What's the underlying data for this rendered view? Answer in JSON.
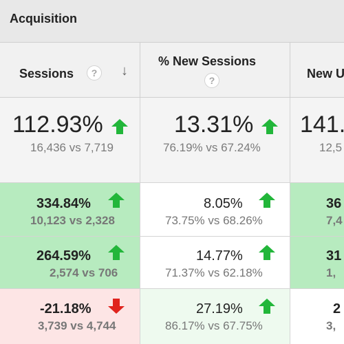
{
  "group_title": "Acquisition",
  "columns": [
    {
      "label": "Sessions",
      "help_glyph": "?",
      "sort_glyph": "↓"
    },
    {
      "label": "% New Sessions",
      "help_glyph": "?"
    },
    {
      "label": "New U"
    }
  ],
  "summary": [
    {
      "value": "112.93%",
      "compare": "16,436 vs 7,719",
      "trend": "up"
    },
    {
      "value": "13.31%",
      "compare": "76.19% vs 67.24%",
      "trend": "up"
    },
    {
      "value": "141.",
      "compare": "12,5",
      "trend": "up"
    }
  ],
  "rows": [
    {
      "cells": [
        {
          "value": "334.84%",
          "compare": "10,123 vs 2,328",
          "trend": "up",
          "bg": "green"
        },
        {
          "value": "8.05%",
          "compare": "73.75% vs 68.26%",
          "trend": "up",
          "bg": "white"
        },
        {
          "value": "36",
          "compare": "7,4",
          "bg": "green"
        }
      ]
    },
    {
      "cells": [
        {
          "value": "264.59%",
          "compare": "2,574 vs 706",
          "trend": "up",
          "bg": "green"
        },
        {
          "value": "14.77%",
          "compare": "71.37% vs 62.18%",
          "trend": "up",
          "bg": "white"
        },
        {
          "value": "31",
          "compare": "1,",
          "bg": "green"
        }
      ]
    },
    {
      "cells": [
        {
          "value": "-21.18%",
          "compare": "3,739 vs 4,744",
          "trend": "down",
          "bg": "red"
        },
        {
          "value": "27.19%",
          "compare": "86.17% vs 67.75%",
          "trend": "up",
          "bg": "lightgreen"
        },
        {
          "value": "2",
          "compare": "3,",
          "bg": "white"
        }
      ]
    }
  ],
  "colors": {
    "up": "#22b63a",
    "down": "#e0231d"
  }
}
